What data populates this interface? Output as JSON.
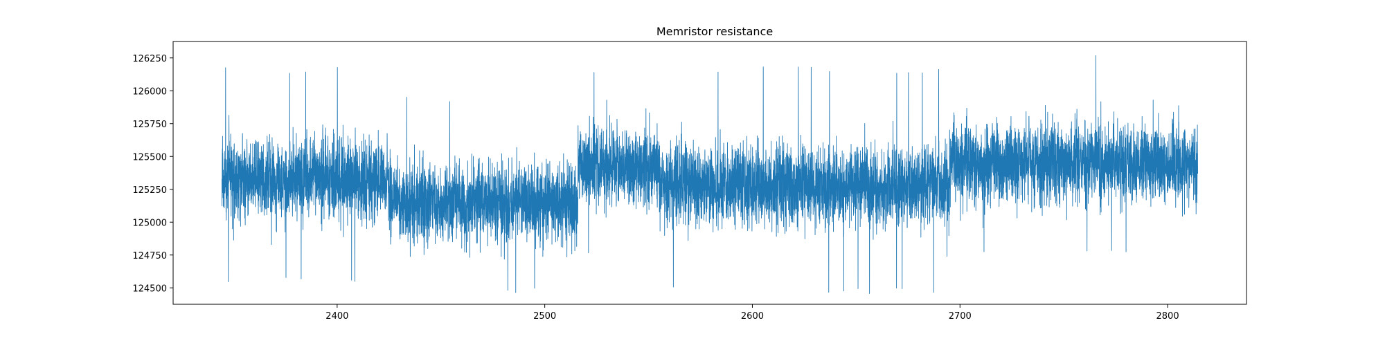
{
  "chart_data": {
    "type": "line",
    "title": "Memristor resistance",
    "xlabel": "",
    "ylabel": "",
    "xlim": [
      2321,
      2838
    ],
    "ylim": [
      124375,
      126375
    ],
    "x_ticks": [
      2400,
      2500,
      2600,
      2700,
      2800
    ],
    "y_ticks": [
      124500,
      124750,
      125000,
      125250,
      125500,
      125750,
      126000,
      126250
    ],
    "series": [
      {
        "color": "#1f77b4",
        "x_start": 2344.5,
        "x_end": 2814.5,
        "segments": [
          {
            "x_start": 2344.5,
            "x_end": 2425,
            "mean": 125330,
            "band_low": 125000,
            "band_high": 125680,
            "peak_min": 124530,
            "peak_max": 126180
          },
          {
            "x_start": 2425,
            "x_end": 2516,
            "mean": 125150,
            "band_low": 124830,
            "band_high": 125480,
            "peak_min": 124450,
            "peak_max": 125960
          },
          {
            "x_start": 2516,
            "x_end": 2555,
            "mean": 125420,
            "band_low": 125080,
            "band_high": 125760,
            "peak_min": 124760,
            "peak_max": 126140
          },
          {
            "x_start": 2555,
            "x_end": 2695,
            "mean": 125280,
            "band_low": 124950,
            "band_high": 125620,
            "peak_min": 124450,
            "peak_max": 126190
          },
          {
            "x_start": 2695,
            "x_end": 2814.5,
            "mean": 125450,
            "band_low": 125120,
            "band_high": 125800,
            "peak_min": 124750,
            "peak_max": 126300
          }
        ]
      }
    ],
    "grid": false,
    "legend": "none"
  }
}
